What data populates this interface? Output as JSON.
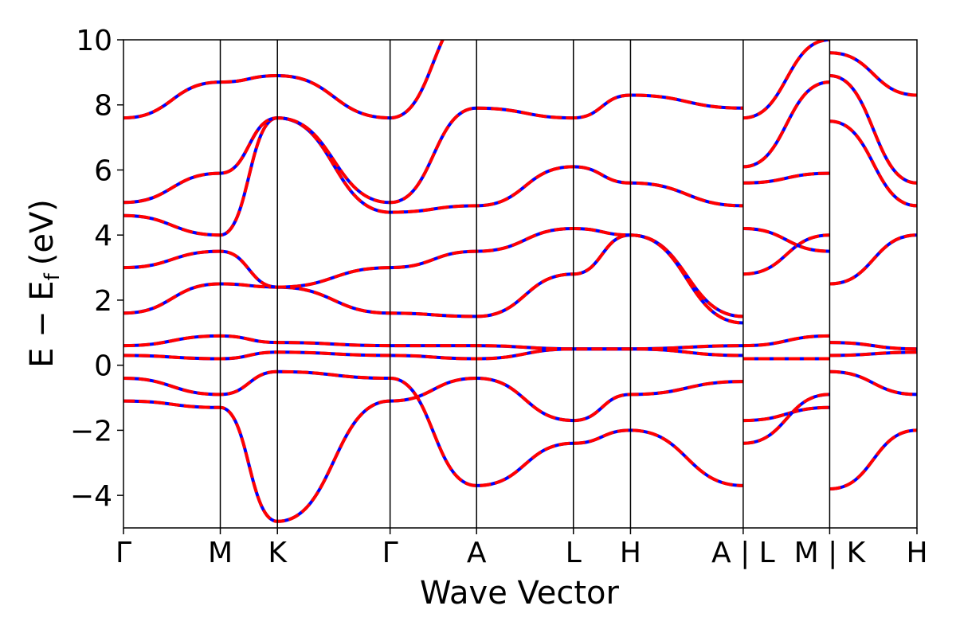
{
  "chart_data": {
    "type": "line",
    "title": "",
    "xlabel": "Wave Vector",
    "ylabel": {
      "base": "E − E",
      "sub": "f",
      "unit": "(eV)"
    },
    "ylim": [
      -5,
      10
    ],
    "yticks": [
      -4,
      -2,
      0,
      2,
      4,
      6,
      8,
      10
    ],
    "ytick_labels": [
      "−4",
      "−2",
      "0",
      "2",
      "4",
      "6",
      "8",
      "10"
    ],
    "xlim": [
      0,
      1
    ],
    "kpoints": [
      {
        "label": "Γ",
        "x": 0.0
      },
      {
        "label": "M",
        "x": 0.122
      },
      {
        "label": "K",
        "x": 0.194
      },
      {
        "label": "Γ",
        "x": 0.336
      },
      {
        "label": "A",
        "x": 0.445
      },
      {
        "label": "L",
        "x": 0.567
      },
      {
        "label": "H",
        "x": 0.639
      },
      {
        "label": "A | L",
        "x": 0.781
      },
      {
        "label": "M | K",
        "x": 0.89
      },
      {
        "label": "H",
        "x": 1.0
      }
    ],
    "grid": false,
    "series_styles": [
      {
        "color": "#0000ff",
        "style": "solid"
      },
      {
        "color": "#ff0000",
        "style": "dashed"
      }
    ],
    "bands": [
      {
        "x": [
          0.0,
          0.122,
          0.194,
          0.336,
          0.445,
          0.567,
          0.639,
          0.781
        ],
        "y": [
          -1.1,
          -1.3,
          -4.8,
          -1.1,
          -0.4,
          -1.7,
          -0.9,
          -0.5
        ]
      },
      {
        "x": [
          0.0,
          0.122,
          0.194,
          0.336,
          0.445,
          0.567,
          0.639,
          0.781
        ],
        "y": [
          -0.4,
          -0.9,
          -0.2,
          -0.4,
          -3.7,
          -2.4,
          -2.0,
          -3.7
        ]
      },
      {
        "x": [
          0.0,
          0.122,
          0.194,
          0.336,
          0.445,
          0.567,
          0.639,
          0.781
        ],
        "y": [
          0.3,
          0.2,
          0.4,
          0.3,
          0.2,
          0.5,
          0.5,
          0.3
        ]
      },
      {
        "x": [
          0.0,
          0.122,
          0.194,
          0.336,
          0.445,
          0.567,
          0.639,
          0.781
        ],
        "y": [
          0.6,
          0.9,
          0.7,
          0.6,
          0.6,
          0.5,
          0.5,
          0.6
        ]
      },
      {
        "x": [
          0.0,
          0.122,
          0.194,
          0.336,
          0.445,
          0.567,
          0.639,
          0.781
        ],
        "y": [
          1.6,
          2.5,
          2.4,
          1.6,
          1.5,
          2.8,
          4.0,
          1.5
        ]
      },
      {
        "x": [
          0.0,
          0.122,
          0.194,
          0.336,
          0.445,
          0.567,
          0.639,
          0.781
        ],
        "y": [
          3.0,
          3.5,
          2.4,
          3.0,
          3.5,
          4.2,
          4.0,
          1.3
        ]
      },
      {
        "x": [
          0.0,
          0.122,
          0.194,
          0.336,
          0.445,
          0.567,
          0.639,
          0.781
        ],
        "y": [
          4.6,
          4.0,
          7.6,
          4.7,
          4.9,
          6.1,
          5.6,
          4.9
        ]
      },
      {
        "x": [
          0.0,
          0.122,
          0.194,
          0.336,
          0.445,
          0.567,
          0.639,
          0.781
        ],
        "y": [
          5.0,
          5.9,
          7.6,
          5.0,
          7.9,
          7.6,
          8.3,
          7.9
        ]
      },
      {
        "x": [
          0.0,
          0.122,
          0.194,
          0.336,
          0.445,
          0.567,
          0.639
        ],
        "y": [
          7.6,
          8.7,
          8.9,
          7.6,
          11.0,
          10.2,
          11.0
        ]
      },
      {
        "x": [
          0.781,
          0.89
        ],
        "y": [
          -1.7,
          -1.3
        ]
      },
      {
        "x": [
          0.781,
          0.89
        ],
        "y": [
          -2.4,
          -0.9
        ]
      },
      {
        "x": [
          0.781,
          0.89
        ],
        "y": [
          0.2,
          0.2
        ]
      },
      {
        "x": [
          0.781,
          0.89
        ],
        "y": [
          0.6,
          0.9
        ]
      },
      {
        "x": [
          0.781,
          0.89
        ],
        "y": [
          2.8,
          4.0
        ]
      },
      {
        "x": [
          0.781,
          0.89
        ],
        "y": [
          4.2,
          3.5
        ]
      },
      {
        "x": [
          0.781,
          0.89
        ],
        "y": [
          5.6,
          5.9
        ]
      },
      {
        "x": [
          0.781,
          0.89
        ],
        "y": [
          6.1,
          8.7
        ]
      },
      {
        "x": [
          0.781,
          0.89
        ],
        "y": [
          7.6,
          10.0
        ]
      },
      {
        "x": [
          0.89,
          1.0
        ],
        "y": [
          -3.8,
          -2.0
        ]
      },
      {
        "x": [
          0.89,
          1.0
        ],
        "y": [
          -0.2,
          -0.9
        ]
      },
      {
        "x": [
          0.89,
          1.0
        ],
        "y": [
          0.3,
          0.4
        ]
      },
      {
        "x": [
          0.89,
          1.0
        ],
        "y": [
          0.7,
          0.5
        ]
      },
      {
        "x": [
          0.89,
          1.0
        ],
        "y": [
          2.5,
          4.0
        ]
      },
      {
        "x": [
          0.89,
          1.0
        ],
        "y": [
          7.5,
          4.9
        ]
      },
      {
        "x": [
          0.89,
          1.0
        ],
        "y": [
          8.9,
          5.6
        ]
      },
      {
        "x": [
          0.89,
          1.0
        ],
        "y": [
          9.6,
          8.3
        ]
      }
    ]
  }
}
